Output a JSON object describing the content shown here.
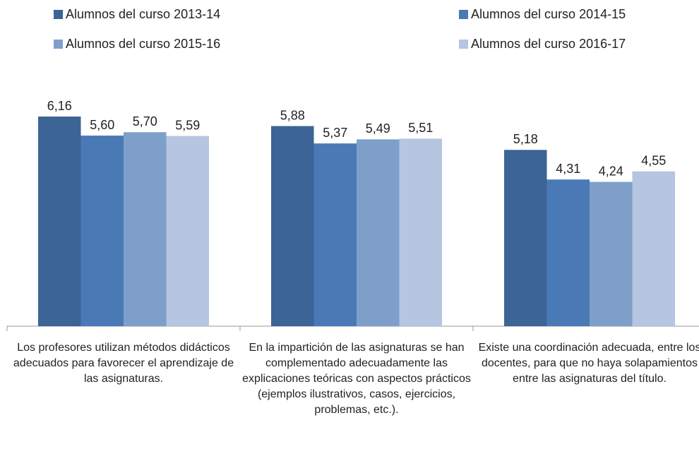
{
  "chart_data": {
    "type": "bar",
    "categories": [
      "Los profesores utilizan métodos didácticos adecuados para favorecer el aprendizaje de las asignaturas.",
      "En la impartición de las asignaturas se han complementado adecuadamente las explicaciones teóricas con aspectos prácticos (ejemplos ilustrativos, casos, ejercicios, problemas, etc.).",
      "Existe una coordinación adecuada, entre los docentes, para que no haya solapamientos entre las asignaturas del título."
    ],
    "series": [
      {
        "name": "Alumnos del curso 2013-14",
        "color": "#3c6496",
        "values": [
          6.16,
          5.88,
          5.18
        ],
        "value_labels": [
          "6,16",
          "5,88",
          "5,18"
        ]
      },
      {
        "name": "Alumnos del curso 2014-15",
        "color": "#4a7ab5",
        "values": [
          5.6,
          5.37,
          4.31
        ],
        "value_labels": [
          "5,60",
          "5,37",
          "4,31"
        ]
      },
      {
        "name": "Alumnos del curso 2015-16",
        "color": "#7f9fcb",
        "values": [
          5.7,
          5.49,
          4.24
        ],
        "value_labels": [
          "5,70",
          "5,49",
          "4,24"
        ]
      },
      {
        "name": "Alumnos del curso 2016-17",
        "color": "#b6c5e0",
        "values": [
          5.59,
          5.51,
          4.55
        ],
        "value_labels": [
          "5,59",
          "5,51",
          "4,55"
        ]
      }
    ],
    "legend": "top"
  }
}
